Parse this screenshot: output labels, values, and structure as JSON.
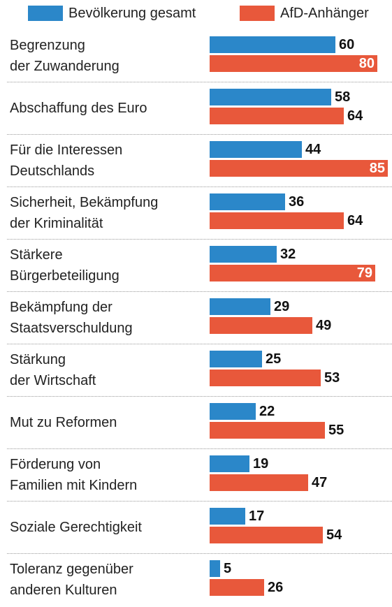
{
  "chart_data": {
    "type": "bar",
    "orientation": "horizontal",
    "categories": [
      "Begrenzung\nder Zuwanderung",
      "Abschaffung des Euro",
      "Für die Interessen\nDeutschlands",
      "Sicherheit, Bekämpfung\nder Kriminalität",
      "Stärkere\nBürgerbeteiligung",
      "Bekämpfung der\nStaatsverschuldung",
      "Stärkung\nder Wirtschaft",
      "Mut zu Reformen",
      "Förderung von\nFamilien mit Kindern",
      "Soziale Gerechtigkeit",
      "Toleranz gegenüber\nanderen Kulturen"
    ],
    "series": [
      {
        "name": "Bevölkerung gesamt",
        "color": "#2b87c9",
        "values": [
          60,
          58,
          44,
          36,
          32,
          29,
          25,
          22,
          19,
          17,
          5
        ]
      },
      {
        "name": "AfD-Anhänger",
        "color": "#e8583b",
        "values": [
          80,
          64,
          85,
          64,
          79,
          49,
          53,
          55,
          47,
          54,
          26
        ]
      }
    ]
  }
}
